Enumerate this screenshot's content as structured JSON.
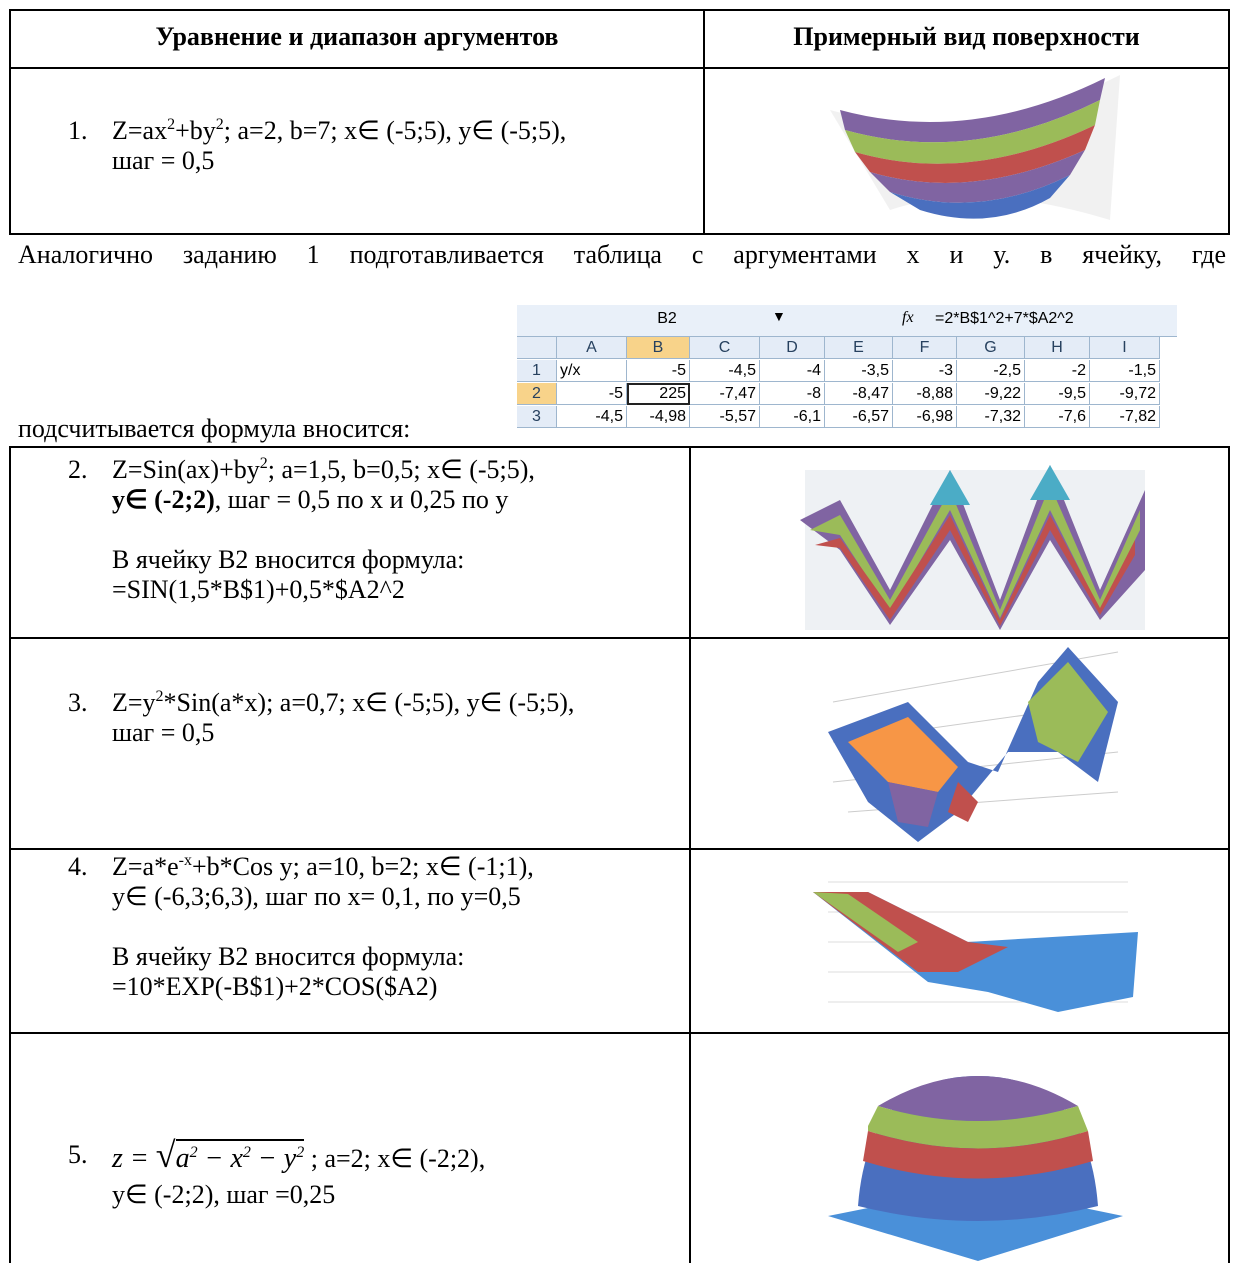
{
  "table": {
    "header": [
      "Уравнение и диапазон аргументов",
      "Примерный вид поверхности"
    ],
    "rows": [
      {
        "number": "1.",
        "equation": [
          "Z=ax",
          "2",
          "+by",
          "2",
          "; a=2, b=7; x∈ (-5;5), y∈ (-5;5),"
        ],
        "lines": [
          "шаг = 0,5"
        ]
      },
      {
        "number": "2.",
        "equation": [
          "Z=Sin(ax)+by",
          "2",
          "; a=1,5, b=0,5; x∈ (-5;5),"
        ],
        "bold": "y∈ (-2;2)",
        "lines": [
          ", шаг = 0,5 по х и 0,25 по у",
          "В ячейку В2 вносится формула:",
          "=SIN(1,5*B$1)+0,5*$A2^2"
        ]
      },
      {
        "number": "3.",
        "equation": [
          "Z=y",
          "2",
          "*Sin(a*x); a=0,7; x∈ (-5;5), y∈ (-5;5),"
        ],
        "lines": [
          "шаг = 0,5"
        ]
      },
      {
        "number": "4.",
        "equation": [
          "Z=a*e",
          "-x",
          "+b*Cos y; a=10, b=2; x∈ (-1;1),"
        ],
        "lines": [
          "y∈ (-6,3;6,3), шаг по х= 0,1, по у=0,5",
          "В ячейку В2 вносится формула:",
          "=10*EXP(-B$1)+2*COS($A2)"
        ]
      },
      {
        "number": "5.",
        "equation": [
          "z = ",
          "a",
          "2",
          " − x",
          "2",
          " − y",
          "2",
          " ; a=2; x∈ (-2;2),"
        ],
        "lines": [
          "y∈ (-2;2), шаг =0,25"
        ]
      }
    ]
  },
  "note": {
    "line1": "Аналогично заданию 1 подготавливается таблица с аргументами х и у. в ячейку, где",
    "line2": "подсчитывается формула вносится:"
  },
  "excel": {
    "name_box": "B2",
    "fx": "fx",
    "formula": "=2*B$1^2+7*$A2^2",
    "columns": [
      "A",
      "B",
      "C",
      "D",
      "E",
      "F",
      "G",
      "H",
      "I"
    ],
    "rows": [
      {
        "number": "1",
        "cells": [
          "y/x",
          "-5",
          "-4,5",
          "-4",
          "-3,5",
          "-3",
          "-2,5",
          "-2",
          "-1,5"
        ]
      },
      {
        "number": "2",
        "cells": [
          "-5",
          "225",
          "-7,47",
          "-8",
          "-8,47",
          "-8,88",
          "-9,22",
          "-9,5",
          "-9,72"
        ]
      },
      {
        "number": "3",
        "cells": [
          "-4,5",
          "-4,98",
          "-5,57",
          "-6,1",
          "-6,57",
          "-6,98",
          "-7,32",
          "-7,6",
          "-7,82"
        ]
      }
    ]
  }
}
